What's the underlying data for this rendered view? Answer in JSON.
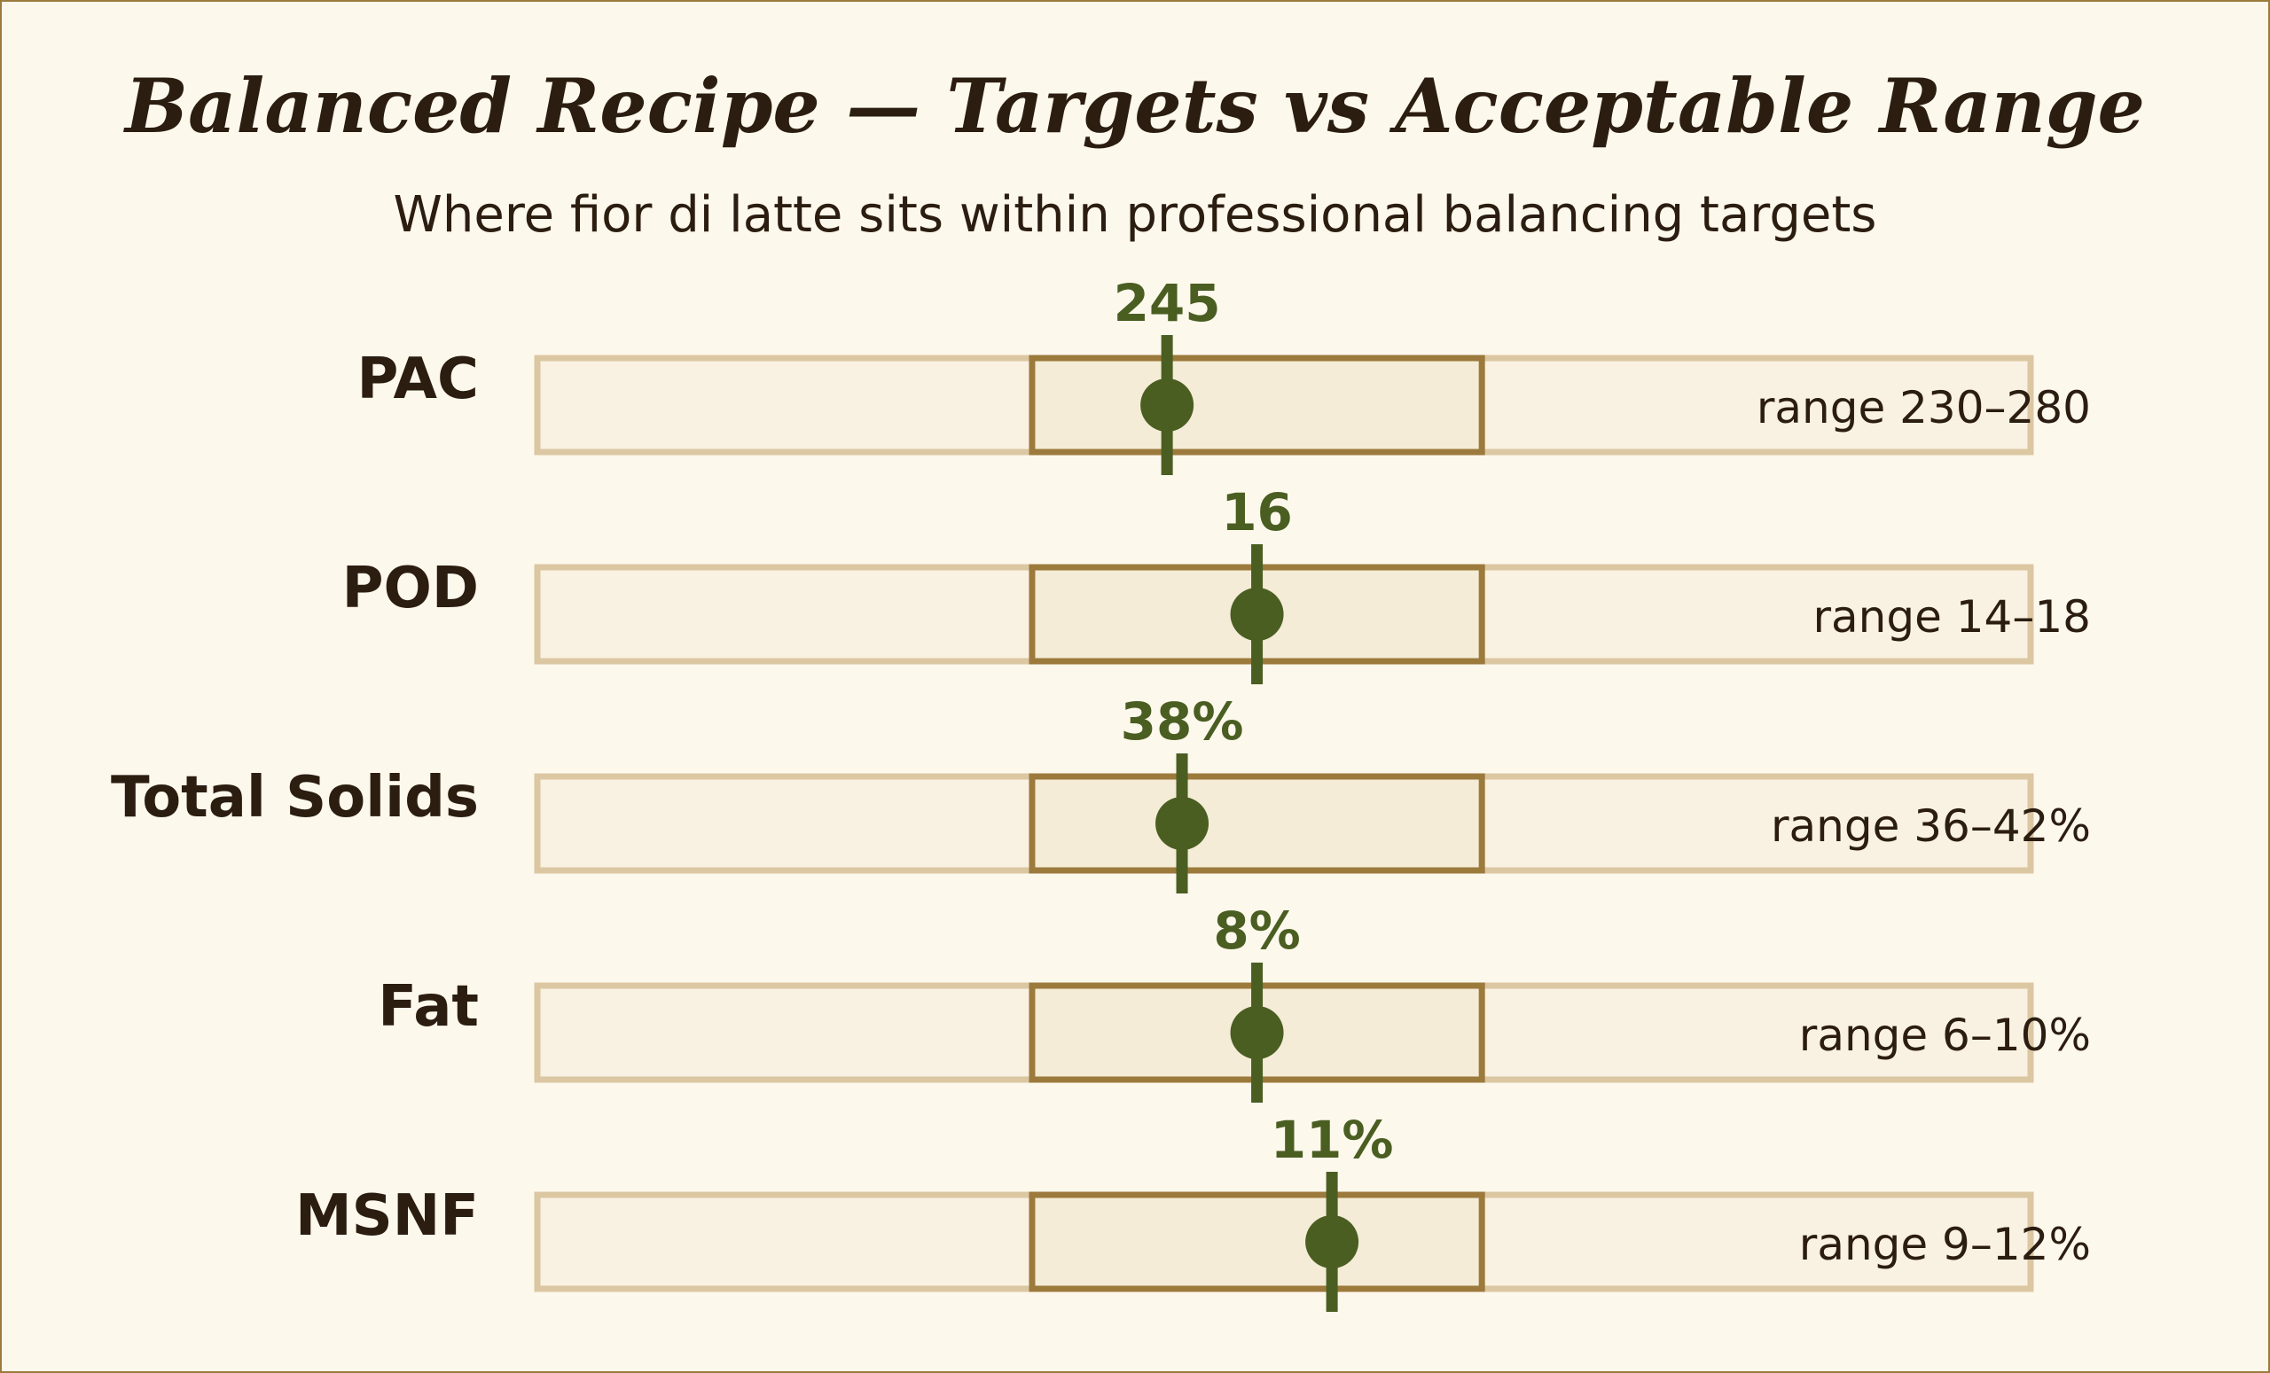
{
  "chart_data": {
    "type": "bullet",
    "title": "Balanced Recipe — Targets vs Acceptable Range",
    "subtitle": "Where fior di latte sits within professional balancing targets",
    "rows": [
      {
        "name": "PAC",
        "value": 245,
        "value_label": "245",
        "range": [
          230,
          280
        ],
        "range_label": "range 230–280"
      },
      {
        "name": "POD",
        "value": 16,
        "value_label": "16",
        "range": [
          14,
          18
        ],
        "range_label": "range 14–18"
      },
      {
        "name": "Total Solids",
        "value": 38,
        "value_label": "38%",
        "range": [
          36,
          42
        ],
        "range_label": "range 36–42%"
      },
      {
        "name": "Fat",
        "value": 8,
        "value_label": "8%",
        "range": [
          6,
          10
        ],
        "range_label": "range 6–10%"
      },
      {
        "name": "MSNF",
        "value": 11,
        "value_label": "11%",
        "range": [
          9,
          12
        ],
        "range_label": "range 9–12%"
      }
    ]
  },
  "colors": {
    "background": "#fdf8ec",
    "frame": "#9c7a3c",
    "track_fill": "#f9f1e2",
    "track_stroke": "#dcc7a3",
    "range_fill": "#f4ecd6",
    "range_stroke": "#9c7a3c",
    "marker": "#4a5e22",
    "text": "#2b1d10"
  }
}
